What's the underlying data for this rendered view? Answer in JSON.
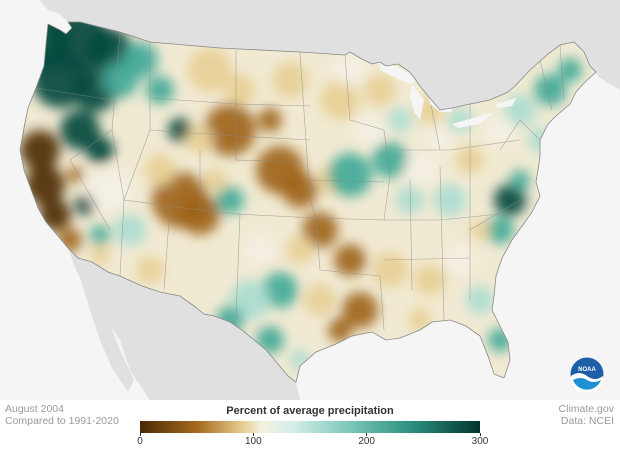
{
  "map": {
    "subject": "Contiguous United States precipitation anomaly",
    "palette": {
      "very_dry": "#4a2906",
      "dry": "#9c6218",
      "slightly_dry": "#e8cf94",
      "normal": "#f4f1e6",
      "slightly_wet": "#a9ddd2",
      "wet": "#3fa897",
      "very_wet": "#04473b",
      "background_land": "#e0e0e0",
      "background_sea": "#f5f5f5"
    }
  },
  "caption": {
    "period": "August 2004",
    "baseline": "Compared to 1991-2020"
  },
  "credits": {
    "source": "Climate.gov",
    "data": "Data: NCEI"
  },
  "legend": {
    "title": "Percent of average precipitation",
    "ticks": [
      "0",
      "100",
      "200",
      "300"
    ],
    "tick_values": [
      0,
      100,
      200,
      300
    ],
    "range": [
      0,
      300
    ]
  },
  "logo": {
    "text": "NOAA",
    "icon": "noaa-logo-icon"
  }
}
